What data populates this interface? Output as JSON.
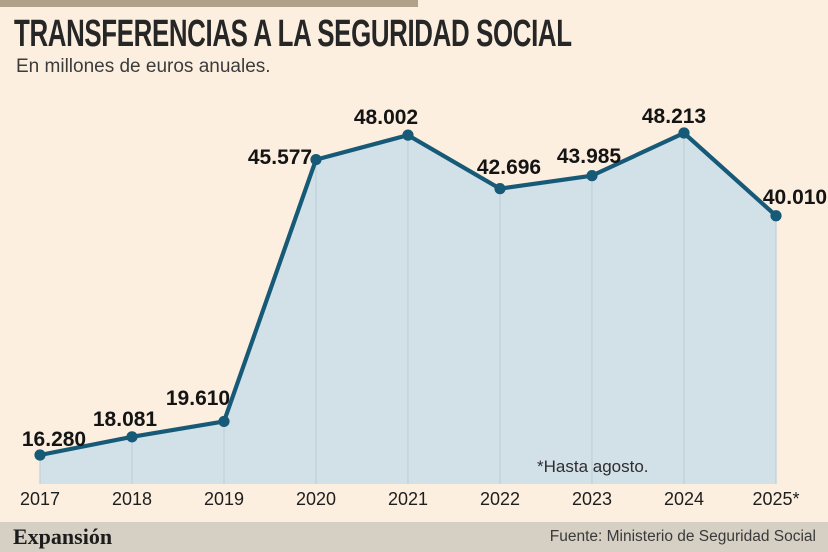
{
  "header": {
    "title": "TRANSFERENCIAS A LA SEGURIDAD SOCIAL",
    "subtitle": "En millones de euros anuales."
  },
  "chart_data": {
    "type": "area",
    "categories": [
      "2017",
      "2018",
      "2019",
      "2020",
      "2021",
      "2022",
      "2023",
      "2024",
      "2025*"
    ],
    "values": [
      16280,
      18081,
      19610,
      45577,
      48002,
      42696,
      43985,
      48213,
      40010
    ],
    "labels": [
      "16.280",
      "18.081",
      "19.610",
      "45.577",
      "48.002",
      "42.696",
      "43.985",
      "48.213",
      "40.010"
    ],
    "title": "TRANSFERENCIAS A LA SEGURIDAD SOCIAL",
    "ylabel": "En millones de euros anuales.",
    "note": "*Hasta agosto.",
    "grid": "vertical-only",
    "legend": "none",
    "ylim_visible": [
      13000,
      49500
    ],
    "line_color": "#175a78",
    "fill_color": "#d2e0e8",
    "grid_color": "#c0d2da",
    "point_color": "#175a78"
  },
  "footer": {
    "brand": "Expansión",
    "source": "Fuente: Ministerio de Seguridad Social"
  },
  "colors": {
    "background": "#fcefdf",
    "top_bar": "#b0a189",
    "footer_bar": "#d6cfc3"
  }
}
